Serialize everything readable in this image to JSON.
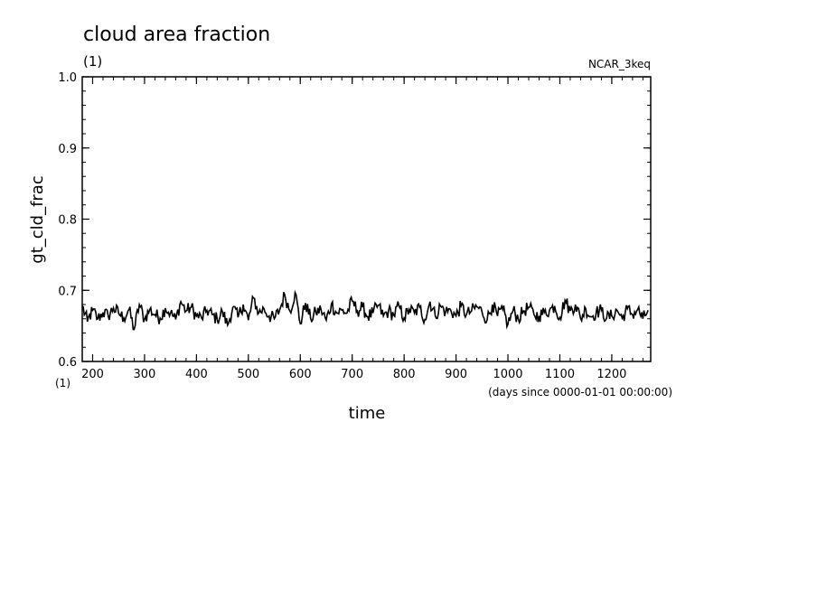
{
  "chart_data": {
    "type": "line",
    "title": "cloud area fraction",
    "title_unit": "(1)",
    "dataset_label": "NCAR_3keq",
    "ylabel": "gt_cld_frac",
    "y_unit": "(1)",
    "xlabel": "time",
    "x_unit": "(days since 0000-01-01 00:00:00)",
    "xlim": [
      180,
      1275
    ],
    "ylim": [
      0.6,
      1.0
    ],
    "x_ticks": [
      200,
      300,
      400,
      500,
      600,
      700,
      800,
      900,
      1000,
      1100,
      1200
    ],
    "y_ticks": [
      "0.6",
      "0.7",
      "0.8",
      "0.9",
      "1.0"
    ],
    "grid": false,
    "series": [
      {
        "x": [
          180,
          190,
          200,
          210,
          220,
          230,
          240,
          250,
          260,
          270,
          280,
          290,
          300,
          310,
          320,
          330,
          340,
          350,
          360,
          370,
          380,
          390,
          400,
          410,
          420,
          430,
          440,
          450,
          460,
          470,
          480,
          490,
          500,
          510,
          520,
          530,
          540,
          550,
          560,
          570,
          580,
          590,
          600,
          610,
          620,
          630,
          640,
          650,
          660,
          670,
          680,
          690,
          700,
          710,
          720,
          730,
          740,
          750,
          760,
          770,
          780,
          790,
          800,
          810,
          820,
          830,
          840,
          850,
          860,
          870,
          880,
          890,
          900,
          910,
          920,
          930,
          940,
          950,
          960,
          970,
          980,
          990,
          1000,
          1010,
          1020,
          1030,
          1040,
          1050,
          1060,
          1070,
          1080,
          1090,
          1100,
          1110,
          1120,
          1130,
          1140,
          1150,
          1160,
          1170,
          1180,
          1190,
          1200,
          1210,
          1220,
          1230,
          1240,
          1250,
          1260,
          1270
        ],
        "y": [
          0.678,
          0.656,
          0.672,
          0.66,
          0.669,
          0.664,
          0.675,
          0.668,
          0.661,
          0.673,
          0.645,
          0.68,
          0.659,
          0.673,
          0.666,
          0.661,
          0.675,
          0.668,
          0.659,
          0.684,
          0.671,
          0.676,
          0.664,
          0.661,
          0.672,
          0.666,
          0.659,
          0.67,
          0.651,
          0.676,
          0.662,
          0.68,
          0.658,
          0.689,
          0.668,
          0.674,
          0.664,
          0.66,
          0.672,
          0.694,
          0.671,
          0.697,
          0.653,
          0.682,
          0.66,
          0.669,
          0.673,
          0.658,
          0.681,
          0.668,
          0.672,
          0.668,
          0.685,
          0.671,
          0.676,
          0.663,
          0.668,
          0.679,
          0.664,
          0.671,
          0.665,
          0.678,
          0.661,
          0.673,
          0.668,
          0.676,
          0.659,
          0.684,
          0.664,
          0.678,
          0.67,
          0.672,
          0.664,
          0.678,
          0.666,
          0.671,
          0.677,
          0.67,
          0.659,
          0.68,
          0.664,
          0.673,
          0.652,
          0.672,
          0.66,
          0.671,
          0.676,
          0.666,
          0.664,
          0.669,
          0.672,
          0.678,
          0.662,
          0.686,
          0.671,
          0.68,
          0.66,
          0.674,
          0.663,
          0.669,
          0.672,
          0.661,
          0.664,
          0.672,
          0.661,
          0.674,
          0.666,
          0.673,
          0.66,
          0.672
        ]
      }
    ]
  }
}
